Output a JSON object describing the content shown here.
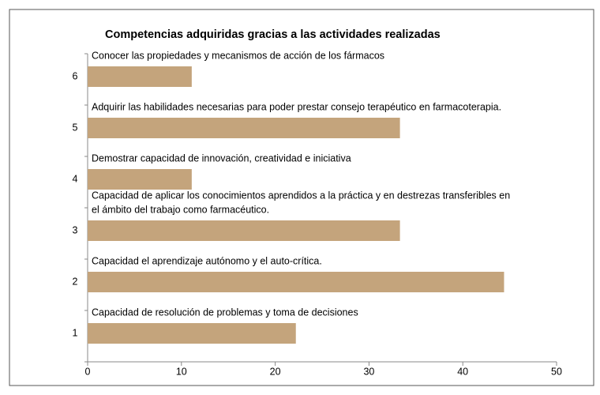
{
  "chart_data": {
    "type": "barh",
    "title": "Competencias adquiridas gracias a las actividades realizadas",
    "categories": [
      "1",
      "2",
      "3",
      "4",
      "5",
      "6"
    ],
    "values": [
      22.2,
      44.4,
      33.3,
      11.1,
      33.3,
      11.1
    ],
    "bar_texts": [
      [
        "Capacidad de resolución de problemas y toma de decisiones"
      ],
      [
        "Capacidad el aprendizaje autónomo y el auto-crítica."
      ],
      [
        "Capacidad de aplicar los conocimientos aprendidos a la práctica y en destrezas  transferibles en",
        "el ámbito del trabajo  como farmacéutico."
      ],
      [
        "Demostrar capacidad de innovación, creatividad e iniciativa"
      ],
      [
        "Adquirir las habilidades necesarias para poder prestar consejo terapéutico en farmacoterapia."
      ],
      [
        "Conocer las propiedades y mecanismos de acción de los fármacos"
      ]
    ],
    "color": "#c4a47c",
    "xlim": [
      0,
      50
    ],
    "xticks": [
      0,
      10,
      20,
      30,
      40,
      50
    ]
  }
}
